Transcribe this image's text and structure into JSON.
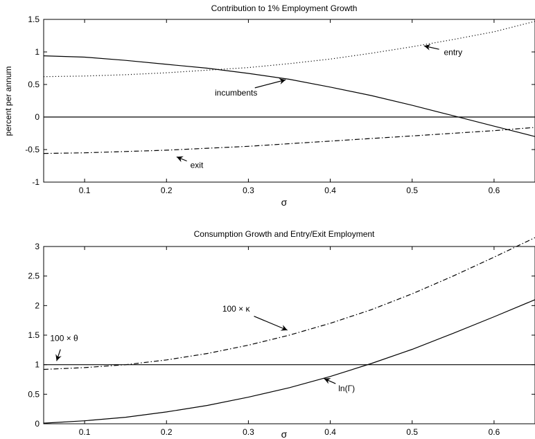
{
  "chart_data": [
    {
      "type": "line",
      "title": "Contribution to 1% Employment Growth",
      "xlabel": "σ",
      "ylabel": "percent per annum",
      "xlim": [
        0.05,
        0.65
      ],
      "ylim": [
        -1,
        1.5
      ],
      "xticks": [
        "0.1",
        "0.2",
        "0.3",
        "0.4",
        "0.5",
        "0.6"
      ],
      "yticks": [
        "-1",
        "-0.5",
        "0",
        "0.5",
        "1",
        "1.5"
      ],
      "grid": false,
      "legend": "none",
      "series": [
        {
          "name": "incumbents",
          "style": "solid",
          "x": [
            0.05,
            0.1,
            0.15,
            0.2,
            0.25,
            0.3,
            0.35,
            0.4,
            0.45,
            0.5,
            0.55,
            0.6,
            0.65
          ],
          "y": [
            0.94,
            0.92,
            0.87,
            0.81,
            0.75,
            0.67,
            0.58,
            0.46,
            0.33,
            0.18,
            0.02,
            -0.14,
            -0.3
          ]
        },
        {
          "name": "entry",
          "style": "dotted",
          "x": [
            0.05,
            0.1,
            0.15,
            0.2,
            0.25,
            0.3,
            0.35,
            0.4,
            0.45,
            0.5,
            0.55,
            0.6,
            0.65
          ],
          "y": [
            0.62,
            0.63,
            0.65,
            0.68,
            0.72,
            0.76,
            0.82,
            0.89,
            0.98,
            1.08,
            1.19,
            1.31,
            1.47
          ]
        },
        {
          "name": "exit",
          "style": "dashdot",
          "x": [
            0.05,
            0.1,
            0.15,
            0.2,
            0.25,
            0.3,
            0.35,
            0.4,
            0.45,
            0.5,
            0.55,
            0.6,
            0.65
          ],
          "y": [
            -0.56,
            -0.55,
            -0.53,
            -0.51,
            -0.48,
            -0.45,
            -0.41,
            -0.37,
            -0.33,
            -0.29,
            -0.25,
            -0.21,
            -0.16
          ]
        },
        {
          "name": "",
          "style": "solid",
          "x": [
            0.05,
            0.65
          ],
          "y": [
            0,
            0
          ]
        }
      ],
      "annotations": [
        {
          "text": "entry",
          "tx": 0.55,
          "ty": 0.95,
          "ax": 0.512,
          "ay": 1.1
        },
        {
          "text": "incumbents",
          "tx": 0.285,
          "ty": 0.33,
          "ax": 0.348,
          "ay": 0.58
        },
        {
          "text": "exit",
          "tx": 0.237,
          "ty": -0.78,
          "ax": 0.21,
          "ay": -0.6
        }
      ]
    },
    {
      "type": "line",
      "title": "Consumption Growth and Entry/Exit Employment",
      "xlabel": "σ",
      "ylabel": "",
      "xlim": [
        0.05,
        0.65
      ],
      "ylim": [
        0,
        3
      ],
      "xticks": [
        "0.1",
        "0.2",
        "0.3",
        "0.4",
        "0.5",
        "0.6"
      ],
      "yticks": [
        "0",
        "0.5",
        "1",
        "1.5",
        "2",
        "2.5",
        "3"
      ],
      "grid": false,
      "legend": "none",
      "series": [
        {
          "name": "ln(Γ)",
          "style": "solid",
          "x": [
            0.05,
            0.1,
            0.15,
            0.2,
            0.25,
            0.3,
            0.35,
            0.4,
            0.45,
            0.5,
            0.55,
            0.6,
            0.65
          ],
          "y": [
            0.01,
            0.05,
            0.11,
            0.2,
            0.31,
            0.45,
            0.61,
            0.8,
            1.02,
            1.26,
            1.53,
            1.81,
            2.1
          ]
        },
        {
          "name": "100 × κ",
          "style": "dashdot",
          "x": [
            0.05,
            0.1,
            0.15,
            0.2,
            0.25,
            0.3,
            0.35,
            0.4,
            0.45,
            0.5,
            0.55,
            0.6,
            0.65
          ],
          "y": [
            0.92,
            0.95,
            1.0,
            1.08,
            1.19,
            1.33,
            1.5,
            1.7,
            1.93,
            2.2,
            2.5,
            2.82,
            3.15
          ]
        },
        {
          "name": "100 × θ",
          "style": "solid",
          "x": [
            0.05,
            0.65
          ],
          "y": [
            1,
            1
          ]
        }
      ],
      "annotations": [
        {
          "text": "100 × κ",
          "tx": 0.285,
          "ty": 1.9,
          "ax": 0.35,
          "ay": 1.57
        },
        {
          "text": "100 × θ",
          "tx": 0.075,
          "ty": 1.4,
          "ax": 0.065,
          "ay": 1.03
        },
        {
          "text": "ln(Γ)",
          "tx": 0.42,
          "ty": 0.55,
          "ax": 0.39,
          "ay": 0.78
        }
      ]
    }
  ]
}
